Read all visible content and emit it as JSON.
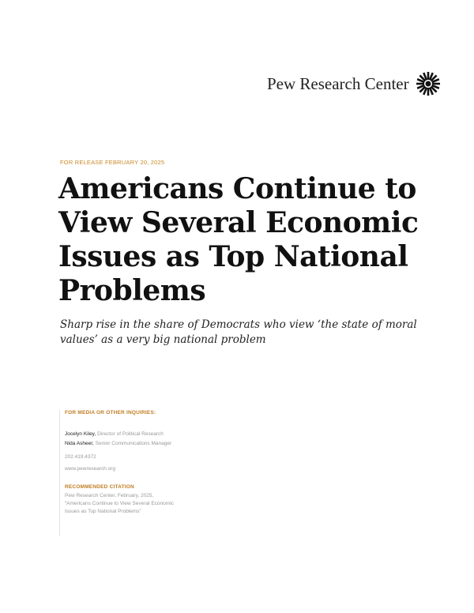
{
  "logo": {
    "text": "Pew Research Center",
    "icon": "sunburst-logo-icon"
  },
  "release": "FOR RELEASE FEBRUARY 20, 2025",
  "title": "Americans Continue to View Several Economic Issues as Top National Problems",
  "subtitle": "Sharp rise in the share of Democrats who view ‘the state of moral values’ as a very big national problem",
  "contact": {
    "heading": "FOR MEDIA OR OTHER INQUIRIES:",
    "people": [
      {
        "name": "Jocelyn Kiley,",
        "role": "Director of Political Research"
      },
      {
        "name": "Nida Asheer,",
        "role": "Senior Communications Manager"
      }
    ],
    "phone": "202.419.4372",
    "website": "www.pewresearch.org"
  },
  "citation": {
    "heading": "RECOMMENDED CITATION",
    "line1": "Pew Research Center, February, 2025,",
    "line2": "“Americans Continue to View Several Economic",
    "line3": "Issues as Top National Problems”"
  }
}
